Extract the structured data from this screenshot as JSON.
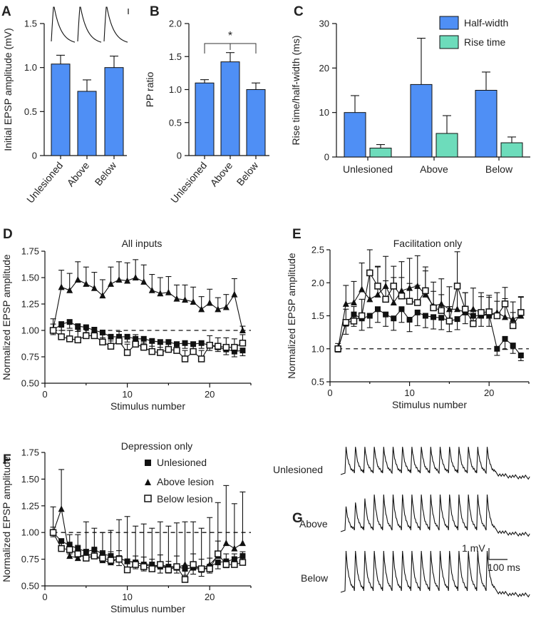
{
  "colors": {
    "blue": "#4f8ff5",
    "teal": "#6ddcbb",
    "axis": "#111111"
  },
  "chart_data": [
    {
      "id": "A",
      "type": "bar",
      "letter": "A",
      "ylabel": "Initial EPSP amplitude (mV)",
      "ylim": [
        0,
        1.5
      ],
      "yticks": [
        0,
        0.5,
        1.0,
        1.5
      ],
      "ytick_labels": [
        "0",
        "0.5",
        "1.0",
        "1.5"
      ],
      "categories": [
        "Unlesioned",
        "Above",
        "Below"
      ],
      "values": [
        1.04,
        0.73,
        1.0
      ],
      "errors": [
        0.1,
        0.13,
        0.13
      ],
      "inset": "example EPSP traces"
    },
    {
      "id": "B",
      "type": "bar",
      "letter": "B",
      "ylabel": "PP ratio",
      "ylim": [
        0,
        2.0
      ],
      "yticks": [
        0,
        0.5,
        1.0,
        1.5,
        2.0
      ],
      "ytick_labels": [
        "0",
        "0.5",
        "1.0",
        "1.5",
        "2.0"
      ],
      "categories": [
        "Unlesioned",
        "Above",
        "Below"
      ],
      "values": [
        1.1,
        1.42,
        1.0
      ],
      "errors": [
        0.05,
        0.14,
        0.1
      ],
      "significance": "*"
    },
    {
      "id": "C",
      "type": "bar",
      "letter": "C",
      "ylabel": "Rise time/half-width (ms)",
      "ylim": [
        0,
        30
      ],
      "yticks": [
        0,
        10,
        20,
        30
      ],
      "ytick_labels": [
        "0",
        "10",
        "20",
        "30"
      ],
      "categories": [
        "Unlesioned",
        "Above",
        "Below"
      ],
      "series": [
        {
          "name": "Half-width",
          "values": [
            10.0,
            16.3,
            15.0
          ],
          "errors": [
            3.8,
            10.4,
            4.1
          ]
        },
        {
          "name": "Rise time",
          "values": [
            2.0,
            5.3,
            3.2
          ],
          "errors": [
            0.8,
            4.0,
            1.3
          ]
        }
      ],
      "legend": "top-right"
    },
    {
      "id": "D",
      "type": "line",
      "letter": "D",
      "title": "All inputs",
      "xlabel": "Stimulus number",
      "ylabel": "Normalized EPSP amplitude",
      "xlim": [
        0,
        25
      ],
      "ylim": [
        0.5,
        1.75
      ],
      "xticks": [
        0,
        10,
        20
      ],
      "yticks": [
        0.5,
        0.75,
        1.0,
        1.25,
        1.5,
        1.75
      ],
      "ytick_labels": [
        "0.50",
        "0.75",
        "1.00",
        "1.25",
        "1.50",
        "1.75"
      ],
      "reference": 1.0,
      "x": [
        1,
        2,
        3,
        4,
        5,
        6,
        7,
        8,
        9,
        10,
        11,
        12,
        13,
        14,
        15,
        16,
        17,
        18,
        19,
        20,
        21,
        22,
        23,
        24
      ],
      "series": [
        {
          "name": "Unlesioned",
          "marker": "filled-square",
          "values": [
            1.0,
            1.06,
            1.08,
            1.04,
            1.03,
            1.0,
            0.98,
            0.94,
            0.94,
            0.94,
            0.92,
            0.92,
            0.9,
            0.89,
            0.89,
            0.87,
            0.88,
            0.87,
            0.88,
            0.86,
            0.84,
            0.82,
            0.8,
            0.81
          ],
          "errors": [
            0.04,
            0.06,
            0.06,
            0.05,
            0.05,
            0.05,
            0.05,
            0.04,
            0.05,
            0.05,
            0.05,
            0.04,
            0.05,
            0.05,
            0.05,
            0.04,
            0.05,
            0.05,
            0.05,
            0.05,
            0.04,
            0.05,
            0.05,
            0.05
          ]
        },
        {
          "name": "Above lesion",
          "marker": "filled-triangle",
          "values": [
            1.01,
            1.41,
            1.38,
            1.48,
            1.44,
            1.4,
            1.33,
            1.44,
            1.48,
            1.47,
            1.5,
            1.46,
            1.38,
            1.35,
            1.36,
            1.3,
            1.29,
            1.27,
            1.2,
            1.26,
            1.2,
            1.22,
            1.34,
            1.0
          ],
          "errors": [
            0.1,
            0.16,
            0.16,
            0.17,
            0.16,
            0.15,
            0.15,
            0.16,
            0.17,
            0.17,
            0.17,
            0.16,
            0.15,
            0.15,
            0.15,
            0.13,
            0.14,
            0.14,
            0.12,
            0.13,
            0.11,
            0.12,
            0.15,
            0.04
          ]
        },
        {
          "name": "Below lesion",
          "marker": "open-square",
          "values": [
            1.0,
            0.94,
            0.92,
            0.91,
            0.95,
            0.95,
            0.89,
            0.85,
            0.9,
            0.79,
            0.87,
            0.84,
            0.8,
            0.79,
            0.82,
            0.81,
            0.73,
            0.8,
            0.73,
            0.86,
            0.85,
            0.84,
            0.84,
            0.88
          ],
          "errors": [
            0.06,
            0.09,
            0.08,
            0.1,
            0.09,
            0.08,
            0.09,
            0.08,
            0.09,
            0.08,
            0.09,
            0.08,
            0.08,
            0.08,
            0.09,
            0.08,
            0.08,
            0.08,
            0.08,
            0.09,
            0.08,
            0.09,
            0.08,
            0.08
          ]
        }
      ]
    },
    {
      "id": "E",
      "type": "line",
      "letter": "E",
      "title": "Facilitation only",
      "xlabel": "Stimulus number",
      "ylabel": "Normalized EPSP amplitude",
      "xlim": [
        0,
        25
      ],
      "ylim": [
        0.5,
        2.5
      ],
      "xticks": [
        0,
        10,
        20
      ],
      "yticks": [
        0.5,
        1.0,
        1.5,
        2.0,
        2.5
      ],
      "ytick_labels": [
        "0.5",
        "1.0",
        "1.5",
        "2.0",
        "2.5"
      ],
      "reference": 1.0,
      "x": [
        1,
        2,
        3,
        4,
        5,
        6,
        7,
        8,
        9,
        10,
        11,
        12,
        13,
        14,
        15,
        16,
        17,
        18,
        19,
        20,
        21,
        22,
        23,
        24
      ],
      "series": [
        {
          "name": "Unlesioned",
          "marker": "filled-square",
          "values": [
            1.0,
            1.38,
            1.52,
            1.46,
            1.5,
            1.6,
            1.52,
            1.46,
            1.6,
            1.44,
            1.55,
            1.5,
            1.48,
            1.47,
            1.42,
            1.45,
            1.56,
            1.5,
            1.5,
            1.52,
            1.0,
            1.15,
            1.05,
            0.9
          ],
          "errors": [
            0.05,
            0.16,
            0.18,
            0.18,
            0.18,
            0.2,
            0.18,
            0.18,
            0.2,
            0.18,
            0.2,
            0.18,
            0.18,
            0.18,
            0.16,
            0.16,
            0.18,
            0.16,
            0.16,
            0.18,
            0.1,
            0.16,
            0.12,
            0.08
          ]
        },
        {
          "name": "Above lesion",
          "marker": "filled-triangle",
          "values": [
            1.0,
            1.68,
            1.7,
            1.9,
            1.75,
            1.82,
            1.95,
            1.7,
            1.88,
            1.92,
            1.95,
            1.82,
            1.65,
            1.68,
            1.6,
            1.6,
            1.55,
            1.6,
            1.55,
            1.5,
            1.55,
            1.48,
            1.45,
            1.5
          ],
          "errors": [
            0.08,
            0.28,
            0.32,
            0.4,
            0.36,
            0.42,
            0.45,
            0.38,
            0.44,
            0.45,
            0.46,
            0.42,
            0.36,
            0.38,
            0.34,
            0.36,
            0.3,
            0.32,
            0.3,
            0.28,
            0.3,
            0.28,
            0.26,
            0.28
          ]
        },
        {
          "name": "Below lesion",
          "marker": "open-square",
          "values": [
            1.0,
            1.4,
            1.42,
            1.5,
            2.15,
            1.95,
            1.75,
            1.95,
            1.8,
            1.72,
            1.7,
            1.88,
            1.62,
            1.58,
            1.42,
            1.95,
            1.6,
            1.38,
            1.55,
            1.56,
            1.5,
            1.68,
            1.35,
            1.55
          ],
          "errors": [
            0.04,
            0.2,
            0.22,
            0.25,
            0.35,
            0.3,
            0.28,
            0.3,
            0.28,
            0.27,
            0.26,
            0.3,
            0.25,
            0.24,
            0.22,
            0.52,
            0.25,
            0.2,
            0.24,
            0.25,
            0.22,
            0.25,
            0.2,
            0.24
          ]
        }
      ]
    },
    {
      "id": "F",
      "type": "line",
      "letter": "F",
      "title": "Depression only",
      "xlabel": "Stimulus number",
      "ylabel": "Normalized EPSP amplitude",
      "xlim": [
        0,
        25
      ],
      "ylim": [
        0.5,
        1.75
      ],
      "xticks": [
        0,
        10,
        20
      ],
      "yticks": [
        0.5,
        0.75,
        1.0,
        1.25,
        1.5,
        1.75
      ],
      "ytick_labels": [
        "0.50",
        "0.75",
        "1.00",
        "1.25",
        "1.50",
        "1.75"
      ],
      "reference": 1.0,
      "legend_entries": [
        "Unlesioned",
        "Above lesion",
        "Below lesion"
      ],
      "x": [
        1,
        2,
        3,
        4,
        5,
        6,
        7,
        8,
        9,
        10,
        11,
        12,
        13,
        14,
        15,
        16,
        17,
        18,
        19,
        20,
        21,
        22,
        23,
        24
      ],
      "series": [
        {
          "name": "Unlesioned",
          "marker": "filled-square",
          "values": [
            1.0,
            0.92,
            0.88,
            0.85,
            0.82,
            0.84,
            0.8,
            0.78,
            0.76,
            0.73,
            0.72,
            0.7,
            0.7,
            0.68,
            0.68,
            0.68,
            0.66,
            0.67,
            0.65,
            0.68,
            0.72,
            0.73,
            0.75,
            0.78
          ],
          "errors": [
            0.04,
            0.08,
            0.08,
            0.07,
            0.07,
            0.08,
            0.07,
            0.07,
            0.07,
            0.06,
            0.06,
            0.06,
            0.06,
            0.06,
            0.06,
            0.06,
            0.06,
            0.06,
            0.06,
            0.06,
            0.06,
            0.06,
            0.06,
            0.06
          ]
        },
        {
          "name": "Above lesion",
          "marker": "filled-triangle",
          "values": [
            1.0,
            1.22,
            0.78,
            0.76,
            0.8,
            0.78,
            0.74,
            0.72,
            0.76,
            0.73,
            0.72,
            0.7,
            0.68,
            0.7,
            0.68,
            0.67,
            0.7,
            0.68,
            0.66,
            0.7,
            0.78,
            0.9,
            0.85,
            0.9
          ],
          "errors": [
            0.24,
            0.37,
            0.2,
            0.22,
            0.3,
            0.26,
            0.26,
            0.3,
            0.36,
            0.42,
            0.34,
            0.38,
            0.36,
            0.4,
            0.38,
            0.42,
            0.4,
            0.42,
            0.38,
            0.44,
            0.5,
            0.54,
            0.42,
            0.48
          ]
        },
        {
          "name": "Below lesion",
          "marker": "open-square",
          "values": [
            1.0,
            0.85,
            0.84,
            0.8,
            0.76,
            0.78,
            0.76,
            0.74,
            0.75,
            0.65,
            0.7,
            0.68,
            0.66,
            0.7,
            0.65,
            0.68,
            0.56,
            0.7,
            0.66,
            0.66,
            0.8,
            0.7,
            0.7,
            0.72
          ],
          "errors": [
            0.05,
            0.07,
            0.07,
            0.08,
            0.08,
            0.07,
            0.07,
            0.08,
            0.08,
            0.1,
            0.08,
            0.09,
            0.09,
            0.09,
            0.08,
            0.1,
            0.1,
            0.1,
            0.09,
            0.1,
            0.12,
            0.1,
            0.1,
            0.1
          ]
        }
      ]
    }
  ],
  "panel_g": {
    "letter": "G",
    "rows": [
      "Unlesioned",
      "Above",
      "Below"
    ],
    "scale_amplitude": "1 mV",
    "scale_time": "100 ms",
    "stimuli": 16
  }
}
